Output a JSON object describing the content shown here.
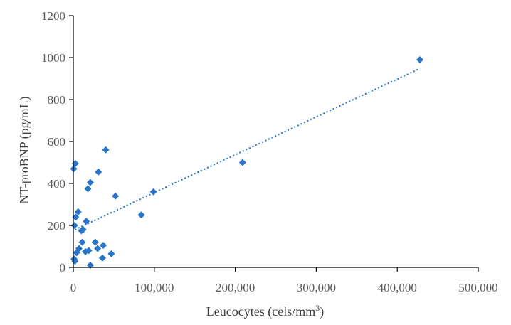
{
  "chart_data": {
    "type": "scatter",
    "title": "",
    "xlabel": "Leucocytes (cels/mm",
    "xlabel_superscript": "3",
    "xlabel_suffix": ")",
    "ylabel": "NT-proBNP  (pg/mL)",
    "xlim": [
      0,
      500000
    ],
    "ylim": [
      0,
      1200
    ],
    "x_ticks": [
      0,
      100000,
      200000,
      300000,
      400000,
      500000
    ],
    "x_tick_labels": [
      "0",
      "100,000",
      "200,000",
      "300,000",
      "400,000",
      "500,000"
    ],
    "y_ticks": [
      0,
      200,
      400,
      600,
      800,
      1000,
      1200
    ],
    "y_tick_labels": [
      "0",
      "200",
      "400",
      "600",
      "800",
      "1000",
      "1200"
    ],
    "grid": false,
    "legend": "none",
    "marker": "diamond",
    "color": "#2874c9",
    "trendline": {
      "type": "linear",
      "style": "dotted",
      "color": "#2874c9",
      "x": [
        2000,
        428000
      ],
      "y": [
        180,
        948
      ]
    },
    "series": [
      {
        "points": [
          {
            "x": 500,
            "y": 470
          },
          {
            "x": 2500,
            "y": 495
          },
          {
            "x": 1000,
            "y": 40
          },
          {
            "x": 2000,
            "y": 30
          },
          {
            "x": 1500,
            "y": 200
          },
          {
            "x": 3000,
            "y": 240
          },
          {
            "x": 6000,
            "y": 265
          },
          {
            "x": 4000,
            "y": 70
          },
          {
            "x": 7000,
            "y": 90
          },
          {
            "x": 11000,
            "y": 120
          },
          {
            "x": 10000,
            "y": 175
          },
          {
            "x": 12000,
            "y": 180
          },
          {
            "x": 15000,
            "y": 75
          },
          {
            "x": 16000,
            "y": 220
          },
          {
            "x": 18000,
            "y": 375
          },
          {
            "x": 19000,
            "y": 80
          },
          {
            "x": 21000,
            "y": 10
          },
          {
            "x": 21000,
            "y": 405
          },
          {
            "x": 27000,
            "y": 120
          },
          {
            "x": 30000,
            "y": 90
          },
          {
            "x": 31000,
            "y": 455
          },
          {
            "x": 36000,
            "y": 45
          },
          {
            "x": 37000,
            "y": 105
          },
          {
            "x": 40000,
            "y": 560
          },
          {
            "x": 47000,
            "y": 65
          },
          {
            "x": 52000,
            "y": 340
          },
          {
            "x": 84000,
            "y": 250
          },
          {
            "x": 99000,
            "y": 360
          },
          {
            "x": 209000,
            "y": 500
          },
          {
            "x": 428000,
            "y": 990
          }
        ]
      }
    ]
  }
}
